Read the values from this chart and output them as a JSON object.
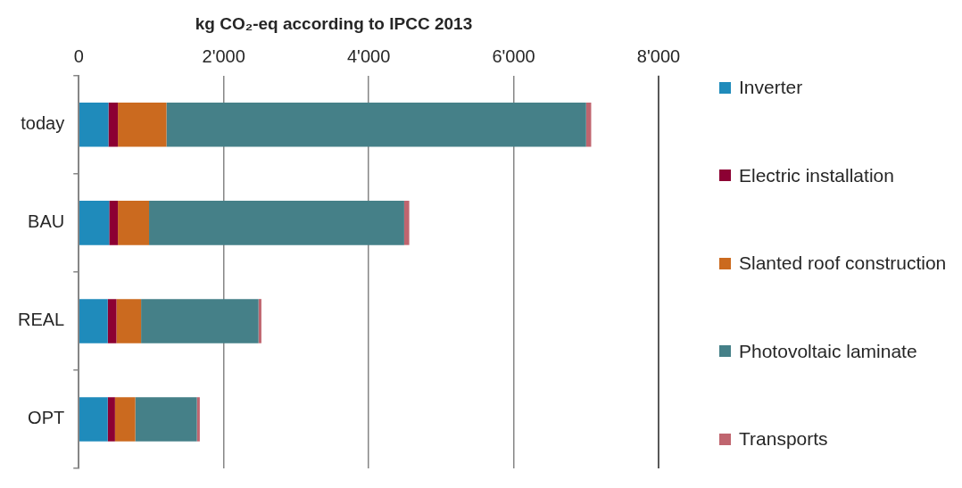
{
  "chart_data": {
    "type": "bar",
    "orientation": "horizontal",
    "stacked": true,
    "title": "kg CO₂-eq according to IPCC 2013",
    "categories": [
      "today",
      "BAU",
      "REAL",
      "OPT"
    ],
    "series": [
      {
        "name": "Inverter",
        "color": "#1f8bbb",
        "values": [
          410,
          420,
          400,
          400
        ]
      },
      {
        "name": "Electric installation",
        "color": "#8c0033",
        "values": [
          130,
          120,
          120,
          100
        ]
      },
      {
        "name": "Slanted roof construction",
        "color": "#cb6a1f",
        "values": [
          670,
          430,
          340,
          280
        ]
      },
      {
        "name": "Photovoltaic laminate",
        "color": "#458088",
        "values": [
          5790,
          3520,
          1620,
          850
        ]
      },
      {
        "name": "Transports",
        "color": "#c0656f",
        "values": [
          70,
          70,
          40,
          40
        ]
      }
    ],
    "xlim": [
      0,
      8000
    ],
    "xticks": [
      0,
      {
        "value": 2000,
        "label": "2'000"
      },
      {
        "value": 4000,
        "label": "4'000"
      },
      {
        "value": 6000,
        "label": "6'000"
      },
      {
        "value": 8000,
        "label": "8'000"
      }
    ],
    "grid": "x",
    "legend": "right"
  }
}
